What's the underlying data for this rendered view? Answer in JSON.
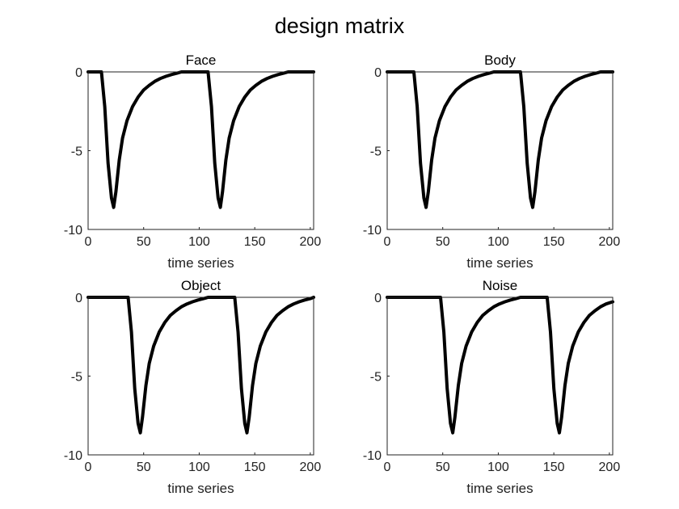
{
  "figure": {
    "title": "design matrix"
  },
  "chart_data": [
    {
      "type": "line",
      "title": "Face",
      "xlabel": "time series",
      "ylabel": "",
      "xlim": [
        0,
        203
      ],
      "ylim": [
        -10,
        0
      ],
      "xticks": [
        0,
        50,
        100,
        150,
        200
      ],
      "xtick_labels": [
        "0",
        "50",
        "100",
        "150",
        "200"
      ],
      "yticks": [
        0,
        -5,
        -10
      ],
      "ytick_labels": [
        "0",
        "-5",
        "-10"
      ],
      "grid": false,
      "series": [
        {
          "x": [
            0,
            12,
            15,
            18,
            21,
            23,
            25,
            28,
            31,
            35,
            40,
            45,
            50,
            55,
            60,
            65,
            70,
            75,
            80,
            84,
            90,
            100,
            108,
            111,
            114,
            117,
            119,
            121,
            124,
            127,
            131,
            136,
            141,
            146,
            151,
            156,
            161,
            166,
            171,
            176,
            180,
            190,
            200,
            203
          ],
          "y": [
            0,
            0,
            -2.2,
            -5.8,
            -8,
            -8.6,
            -7.6,
            -5.6,
            -4.2,
            -3.1,
            -2.2,
            -1.6,
            -1.15,
            -0.85,
            -0.6,
            -0.42,
            -0.28,
            -0.17,
            -0.08,
            0,
            0,
            0,
            0,
            -2.2,
            -5.8,
            -8,
            -8.6,
            -7.6,
            -5.6,
            -4.2,
            -3.1,
            -2.2,
            -1.6,
            -1.15,
            -0.85,
            -0.6,
            -0.42,
            -0.28,
            -0.17,
            -0.08,
            0,
            0,
            0,
            0
          ]
        }
      ]
    },
    {
      "type": "line",
      "title": "Body",
      "xlabel": "time series",
      "ylabel": "",
      "xlim": [
        0,
        203
      ],
      "ylim": [
        -10,
        0
      ],
      "xticks": [
        0,
        50,
        100,
        150,
        200
      ],
      "xtick_labels": [
        "0",
        "50",
        "100",
        "150",
        "200"
      ],
      "yticks": [
        0,
        -5,
        -10
      ],
      "ytick_labels": [
        "0",
        "-5",
        "-10"
      ],
      "grid": false,
      "series": [
        {
          "x": [
            0,
            24,
            27,
            30,
            33,
            35,
            37,
            40,
            43,
            47,
            52,
            57,
            62,
            67,
            72,
            77,
            82,
            87,
            92,
            96,
            100,
            110,
            120,
            123,
            126,
            129,
            131,
            133,
            136,
            139,
            143,
            148,
            153,
            158,
            163,
            168,
            173,
            178,
            183,
            188,
            192,
            200,
            203
          ],
          "y": [
            0,
            0,
            -2.2,
            -5.8,
            -8,
            -8.6,
            -7.6,
            -5.6,
            -4.2,
            -3.1,
            -2.2,
            -1.6,
            -1.15,
            -0.85,
            -0.6,
            -0.42,
            -0.28,
            -0.17,
            -0.08,
            0,
            0,
            0,
            0,
            -2.2,
            -5.8,
            -8,
            -8.6,
            -7.6,
            -5.6,
            -4.2,
            -3.1,
            -2.2,
            -1.6,
            -1.15,
            -0.85,
            -0.6,
            -0.42,
            -0.28,
            -0.17,
            -0.08,
            0,
            0,
            0
          ]
        }
      ]
    },
    {
      "type": "line",
      "title": "Object",
      "xlabel": "time series",
      "ylabel": "",
      "xlim": [
        0,
        203
      ],
      "ylim": [
        -10,
        0
      ],
      "xticks": [
        0,
        50,
        100,
        150,
        200
      ],
      "xtick_labels": [
        "0",
        "50",
        "100",
        "150",
        "200"
      ],
      "yticks": [
        0,
        -5,
        -10
      ],
      "ytick_labels": [
        "0",
        "-5",
        "-10"
      ],
      "grid": false,
      "series": [
        {
          "x": [
            0,
            36,
            39,
            42,
            45,
            47,
            49,
            52,
            55,
            59,
            64,
            69,
            74,
            79,
            84,
            89,
            94,
            99,
            104,
            108,
            115,
            125,
            132,
            135,
            138,
            141,
            143,
            145,
            148,
            151,
            155,
            160,
            165,
            170,
            175,
            180,
            185,
            190,
            195,
            200,
            203
          ],
          "y": [
            0,
            0,
            -2.2,
            -5.8,
            -8,
            -8.6,
            -7.6,
            -5.6,
            -4.2,
            -3.1,
            -2.2,
            -1.6,
            -1.15,
            -0.85,
            -0.6,
            -0.42,
            -0.28,
            -0.17,
            -0.08,
            0,
            0,
            0,
            0,
            -2.2,
            -5.8,
            -8,
            -8.6,
            -7.6,
            -5.6,
            -4.2,
            -3.1,
            -2.2,
            -1.6,
            -1.15,
            -0.85,
            -0.6,
            -0.42,
            -0.28,
            -0.17,
            -0.08,
            0
          ]
        }
      ]
    },
    {
      "type": "line",
      "title": "Noise",
      "xlabel": "time series",
      "ylabel": "",
      "xlim": [
        0,
        203
      ],
      "ylim": [
        -10,
        0
      ],
      "xticks": [
        0,
        50,
        100,
        150,
        200
      ],
      "xtick_labels": [
        "0",
        "50",
        "100",
        "150",
        "200"
      ],
      "yticks": [
        0,
        -5,
        -10
      ],
      "ytick_labels": [
        "0",
        "-5",
        "-10"
      ],
      "grid": false,
      "series": [
        {
          "x": [
            0,
            48,
            51,
            54,
            57,
            59,
            61,
            64,
            67,
            71,
            76,
            81,
            86,
            91,
            96,
            101,
            106,
            111,
            116,
            120,
            125,
            132,
            144,
            147,
            150,
            153,
            155,
            157,
            160,
            163,
            167,
            172,
            177,
            182,
            187,
            192,
            197,
            203
          ],
          "y": [
            0,
            0,
            -2.2,
            -5.8,
            -8,
            -8.6,
            -7.6,
            -5.6,
            -4.2,
            -3.1,
            -2.2,
            -1.6,
            -1.15,
            -0.85,
            -0.6,
            -0.42,
            -0.28,
            -0.17,
            -0.08,
            0,
            0,
            0,
            0,
            -2.2,
            -5.8,
            -8,
            -8.6,
            -7.6,
            -5.6,
            -4.2,
            -3.1,
            -2.2,
            -1.6,
            -1.15,
            -0.85,
            -0.6,
            -0.42,
            -0.28
          ]
        }
      ]
    }
  ]
}
